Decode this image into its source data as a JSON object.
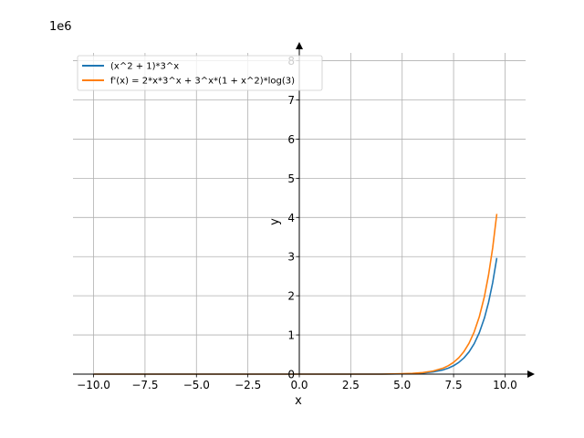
{
  "chart_data": {
    "type": "line",
    "title": "",
    "xlabel": "x",
    "ylabel": "y",
    "y_offset_label": "1e6",
    "xlim": [
      -11.0,
      11.0
    ],
    "ylim": [
      0,
      8.2
    ],
    "x_ticks": [
      -10.0,
      -7.5,
      -5.0,
      -2.5,
      0.0,
      2.5,
      5.0,
      7.5,
      10.0
    ],
    "x_tick_labels": [
      "−10.0",
      "−7.5",
      "−5.0",
      "−2.5",
      "0.0",
      "2.5",
      "5.0",
      "7.5",
      "10.0"
    ],
    "y_ticks": [
      0,
      1,
      2,
      3,
      4,
      5,
      6,
      7,
      8
    ],
    "y_tick_labels": [
      "0",
      "1",
      "2",
      "3",
      "4",
      "5",
      "6",
      "7",
      "8"
    ],
    "y_scale_note": "values in units of 1e6",
    "grid": true,
    "legend_position": "top-left",
    "x": [
      -10,
      -9,
      -8,
      -7,
      -6,
      -5,
      -4,
      -3,
      -2,
      -1,
      0,
      1,
      2,
      3,
      4,
      5,
      5.5,
      6,
      6.5,
      7,
      7.25,
      7.5,
      7.75,
      8,
      8.25,
      8.5,
      8.75,
      9,
      9.2,
      9.4,
      9.6
    ],
    "series": [
      {
        "name": "(x^2 + 1)*3^x",
        "color": "#1f77b4",
        "values": [
          0.0,
          0.0,
          0.0,
          0.0,
          0.0,
          0.0,
          0.0,
          0.0,
          0.0,
          0.0,
          0.0,
          0.0,
          0.0,
          0.0,
          0.0,
          0.0061,
          0.013,
          0.027,
          0.0552,
          0.1094,
          0.1537,
          0.2147,
          0.2981,
          0.412,
          0.5664,
          0.7753,
          1.0567,
          1.4349,
          1.8334,
          2.3349,
          2.9658
        ]
      },
      {
        "name": "f'(x) = 2*x*3^x + 3^x*(1 + x^2)*log(3)",
        "color": "#ff7f0e",
        "values": [
          0.0,
          0.0,
          0.0,
          0.0,
          0.0,
          0.0,
          0.0,
          0.0,
          0.0,
          0.0,
          0.0,
          0.0,
          0.0,
          0.0,
          0.0,
          0.0091,
          0.019,
          0.0389,
          0.0787,
          0.1548,
          0.2165,
          0.3013,
          0.417,
          0.5743,
          0.7874,
          1.0762,
          1.4648,
          1.9857,
          2.5347,
          3.2241,
          4.0897
        ]
      }
    ]
  }
}
